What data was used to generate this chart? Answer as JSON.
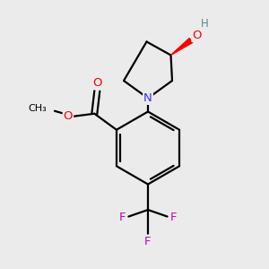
{
  "background_color": "#ebebeb",
  "atom_colors": {
    "C": "#000000",
    "N": "#3333ff",
    "O": "#ff0000",
    "F": "#cc00cc",
    "H": "#558888"
  },
  "bond_color": "#000000",
  "bond_width": 1.6,
  "figsize": [
    3.0,
    3.0
  ],
  "dpi": 100,
  "xlim": [
    0,
    10
  ],
  "ylim": [
    0,
    10
  ]
}
